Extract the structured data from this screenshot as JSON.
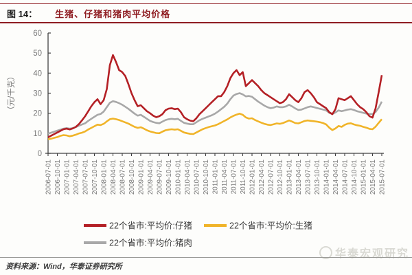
{
  "header": {
    "figure_label": "图 14：",
    "title": "生猪、仔猪和猪肉平均价格"
  },
  "footer": {
    "source": "资料来源：Wind，华泰证券研究所",
    "watermark": "华泰宏观研究"
  },
  "colors": {
    "header_rule": "#8f1d22",
    "title_text": "#8f1d22",
    "axis": "#404040",
    "tick_text": "#7a7a7a",
    "legend_text": "#3d3d3d",
    "series_piglet": "#b42025",
    "series_live_pig": "#f0b429",
    "series_pork": "#a8a8a8"
  },
  "chart_data": {
    "type": "line",
    "title": "生猪、仔猪和猪肉平均价格",
    "xlabel": "",
    "ylabel": "（元/千克）",
    "ylim": [
      0,
      60
    ],
    "yticks": [
      0,
      10,
      20,
      30,
      40,
      50,
      60
    ],
    "grid": false,
    "legend_position": "bottom",
    "x_tick_labels": [
      "2006-07-01",
      "2006-10-01",
      "2007-01-01",
      "2007-04-01",
      "2007-07-01",
      "2007-10-01",
      "2008-01-01",
      "2008-04-01",
      "2008-07-01",
      "2008-10-01",
      "2009-01-01",
      "2009-04-01",
      "2009-07-01",
      "2009-10-01",
      "2010-01-01",
      "2010-04-01",
      "2010-07-01",
      "2010-10-01",
      "2011-01-01",
      "2011-04-01",
      "2011-07-01",
      "2011-10-01",
      "2012-01-01",
      "2012-04-01",
      "2012-07-01",
      "2012-10-01",
      "2013-01-01",
      "2013-04-01",
      "2013-07-01",
      "2013-10-01",
      "2014-01-01",
      "2014-04-01",
      "2014-07-01",
      "2014-10-01",
      "2015-01-01",
      "2015-04-01",
      "2015-07-01"
    ],
    "x_start": "2006-07",
    "x_end": "2015-07",
    "x_freq": "monthly (estimated from weekly series)",
    "series": [
      {
        "name": "22个省市:平均价:仔猪",
        "color": "#b42025",
        "values": [
          8.0,
          8.8,
          9.6,
          10.4,
          11.2,
          12.0,
          12.3,
          11.9,
          12.4,
          13.2,
          14.6,
          16.5,
          18.5,
          21.0,
          23.5,
          25.5,
          27.0,
          24.5,
          26.5,
          32.0,
          44.0,
          49.0,
          45.5,
          41.5,
          40.5,
          38.5,
          34.5,
          30.0,
          26.5,
          23.5,
          24.0,
          22.5,
          21.0,
          20.0,
          18.8,
          18.0,
          18.5,
          19.5,
          21.5,
          22.3,
          22.5,
          22.0,
          22.3,
          20.5,
          18.0,
          17.0,
          16.3,
          16.0,
          17.5,
          19.5,
          21.0,
          22.5,
          24.0,
          25.5,
          27.0,
          28.5,
          28.5,
          30.5,
          33.5,
          37.5,
          40.0,
          41.5,
          39.0,
          40.5,
          33.5,
          35.0,
          36.5,
          35.0,
          33.5,
          31.5,
          30.0,
          29.0,
          28.0,
          27.0,
          26.0,
          25.0,
          25.5,
          27.0,
          29.5,
          28.0,
          26.5,
          25.5,
          27.5,
          30.5,
          31.5,
          30.0,
          28.0,
          25.5,
          24.5,
          23.5,
          22.5,
          20.5,
          19.5,
          22.0,
          27.5,
          27.0,
          26.5,
          27.5,
          28.5,
          26.5,
          24.5,
          23.0,
          22.0,
          20.5,
          18.5,
          17.8,
          22.5,
          30.5,
          39.0
        ]
      },
      {
        "name": "22个省市:平均价:生猪",
        "color": "#f0b429",
        "values": [
          7.0,
          7.3,
          7.7,
          8.1,
          8.7,
          9.1,
          8.9,
          8.5,
          8.8,
          9.3,
          9.9,
          10.3,
          10.9,
          11.9,
          12.7,
          13.5,
          14.3,
          14.1,
          14.7,
          15.9,
          17.0,
          17.3,
          17.0,
          16.6,
          16.0,
          15.4,
          14.8,
          14.0,
          13.2,
          12.7,
          13.0,
          12.3,
          11.5,
          10.9,
          10.5,
          10.1,
          10.0,
          10.8,
          11.5,
          11.8,
          12.0,
          11.8,
          12.0,
          11.2,
          10.4,
          10.0,
          9.7,
          9.6,
          10.4,
          11.2,
          12.0,
          12.6,
          13.1,
          13.5,
          13.9,
          14.5,
          15.3,
          16.1,
          16.9,
          17.9,
          18.7,
          19.3,
          19.8,
          19.2,
          17.9,
          17.3,
          17.5,
          16.6,
          15.9,
          15.3,
          14.7,
          14.3,
          14.1,
          14.5,
          14.9,
          14.7,
          15.1,
          15.7,
          16.4,
          15.8,
          15.1,
          14.9,
          15.5,
          16.1,
          16.4,
          16.2,
          16.0,
          15.8,
          15.5,
          15.1,
          14.4,
          12.8,
          11.6,
          12.4,
          13.6,
          13.2,
          14.2,
          14.8,
          15.0,
          14.4,
          14.0,
          13.7,
          13.2,
          12.8,
          12.2,
          12.0,
          13.3,
          15.2,
          17.0
        ]
      },
      {
        "name": "22个省市:平均价:猪肉",
        "color": "#a8a8a8",
        "values": [
          9.8,
          10.3,
          10.8,
          11.3,
          11.8,
          12.3,
          12.6,
          12.3,
          12.6,
          13.1,
          13.8,
          14.4,
          15.0,
          16.2,
          17.2,
          18.2,
          19.2,
          19.6,
          20.8,
          23.0,
          25.2,
          26.0,
          25.6,
          25.0,
          24.2,
          23.2,
          22.2,
          21.0,
          19.8,
          18.8,
          19.2,
          18.2,
          17.2,
          16.2,
          15.6,
          15.2,
          15.0,
          15.8,
          16.6,
          17.0,
          17.2,
          17.0,
          17.2,
          16.2,
          15.2,
          14.8,
          14.5,
          14.5,
          15.5,
          16.5,
          17.2,
          17.8,
          18.4,
          19.0,
          19.8,
          20.8,
          22.0,
          23.2,
          24.8,
          27.0,
          28.8,
          29.6,
          30.0,
          29.4,
          28.4,
          28.6,
          28.2,
          27.0,
          25.8,
          24.8,
          23.8,
          23.0,
          22.5,
          22.8,
          23.4,
          23.0,
          23.0,
          23.4,
          24.2,
          23.4,
          22.4,
          21.6,
          21.8,
          22.4,
          23.0,
          23.4,
          23.0,
          22.6,
          22.2,
          21.8,
          21.4,
          20.2,
          19.6,
          20.4,
          21.4,
          21.0,
          21.4,
          21.8,
          22.0,
          21.6,
          21.0,
          20.6,
          20.2,
          19.8,
          19.6,
          19.6,
          20.6,
          22.8,
          25.8
        ]
      }
    ]
  }
}
